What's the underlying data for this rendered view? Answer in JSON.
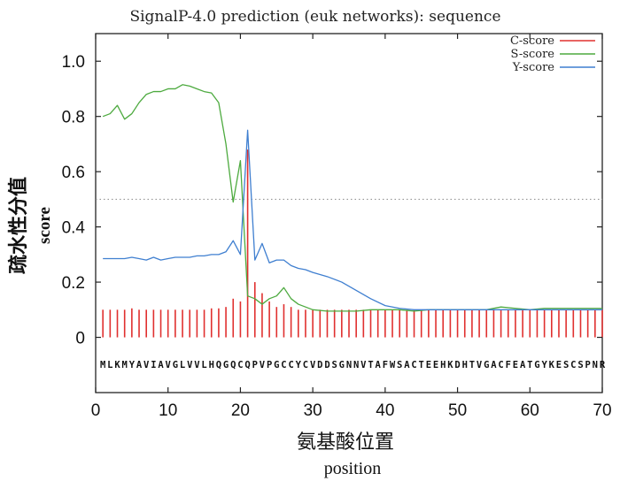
{
  "chart_data": {
    "type": "line",
    "title": "SignalP-4.0 prediction (euk networks): sequence",
    "ylabel_cn": "疏水性分值",
    "ylabel_en": "score",
    "xlabel_cn": "氨基酸位置",
    "xlabel_en": "position",
    "xlim": [
      0,
      70
    ],
    "ylim": [
      -0.2,
      1.1
    ],
    "x_ticks": [
      "0",
      "10",
      "20",
      "30",
      "40",
      "50",
      "60",
      "70"
    ],
    "y_ticks": [
      "0",
      "0.2",
      "0.4",
      "0.6",
      "0.8",
      "1.0"
    ],
    "threshold": 0.5,
    "legend_position": "top-right",
    "sequence": "MLKMYAVIAVGLVVLHQGQCQPVPGCCYCVDDSGNNVTAFWSACTEEHKDHTVGACFEATGYKESCSPNR",
    "series": [
      {
        "name": "C-score",
        "color": "#e0302f",
        "style": "impulse",
        "x": [
          1,
          2,
          3,
          4,
          5,
          6,
          7,
          8,
          9,
          10,
          11,
          12,
          13,
          14,
          15,
          16,
          17,
          18,
          19,
          20,
          21,
          22,
          23,
          24,
          25,
          26,
          27,
          28,
          29,
          30,
          31,
          32,
          33,
          34,
          35,
          36,
          37,
          38,
          39,
          40,
          41,
          42,
          43,
          44,
          45,
          46,
          47,
          48,
          49,
          50,
          51,
          52,
          53,
          54,
          55,
          56,
          57,
          58,
          59,
          60,
          61,
          62,
          63,
          64,
          65,
          66,
          67,
          68,
          69,
          70
        ],
        "values": [
          0.1,
          0.1,
          0.1,
          0.1,
          0.105,
          0.1,
          0.1,
          0.1,
          0.1,
          0.1,
          0.1,
          0.1,
          0.1,
          0.1,
          0.1,
          0.105,
          0.105,
          0.11,
          0.14,
          0.13,
          0.68,
          0.2,
          0.16,
          0.13,
          0.11,
          0.12,
          0.11,
          0.1,
          0.1,
          0.1,
          0.1,
          0.1,
          0.1,
          0.1,
          0.1,
          0.1,
          0.1,
          0.1,
          0.1,
          0.1,
          0.1,
          0.1,
          0.1,
          0.1,
          0.1,
          0.1,
          0.1,
          0.1,
          0.1,
          0.1,
          0.1,
          0.1,
          0.1,
          0.1,
          0.1,
          0.1,
          0.1,
          0.1,
          0.1,
          0.1,
          0.1,
          0.1,
          0.1,
          0.1,
          0.1,
          0.1,
          0.1,
          0.1,
          0.1,
          0.1
        ]
      },
      {
        "name": "S-score",
        "color": "#4daa3f",
        "style": "line",
        "x": [
          1,
          2,
          3,
          4,
          5,
          6,
          7,
          8,
          9,
          10,
          11,
          12,
          13,
          14,
          15,
          16,
          17,
          18,
          19,
          20,
          21,
          22,
          23,
          24,
          25,
          26,
          27,
          28,
          29,
          30,
          32,
          34,
          36,
          38,
          40,
          42,
          44,
          46,
          48,
          50,
          52,
          54,
          56,
          58,
          60,
          62,
          64,
          66,
          68,
          70
        ],
        "values": [
          0.8,
          0.81,
          0.84,
          0.79,
          0.81,
          0.85,
          0.88,
          0.89,
          0.89,
          0.9,
          0.9,
          0.915,
          0.91,
          0.9,
          0.89,
          0.885,
          0.85,
          0.7,
          0.49,
          0.64,
          0.15,
          0.14,
          0.12,
          0.14,
          0.15,
          0.18,
          0.14,
          0.12,
          0.11,
          0.1,
          0.095,
          0.095,
          0.095,
          0.1,
          0.1,
          0.1,
          0.095,
          0.1,
          0.1,
          0.1,
          0.1,
          0.1,
          0.11,
          0.105,
          0.1,
          0.105,
          0.105,
          0.105,
          0.105,
          0.105
        ]
      },
      {
        "name": "Y-score",
        "color": "#3f7fd0",
        "style": "line",
        "x": [
          1,
          2,
          3,
          4,
          5,
          6,
          7,
          8,
          9,
          10,
          11,
          12,
          13,
          14,
          15,
          16,
          17,
          18,
          19,
          20,
          21,
          22,
          23,
          24,
          25,
          26,
          27,
          28,
          29,
          30,
          32,
          34,
          36,
          38,
          40,
          42,
          44,
          46,
          48,
          50,
          52,
          54,
          56,
          58,
          60,
          62,
          64,
          66,
          68,
          70
        ],
        "values": [
          0.285,
          0.285,
          0.285,
          0.285,
          0.29,
          0.285,
          0.28,
          0.29,
          0.28,
          0.285,
          0.29,
          0.29,
          0.29,
          0.295,
          0.295,
          0.3,
          0.3,
          0.31,
          0.35,
          0.3,
          0.75,
          0.28,
          0.34,
          0.27,
          0.28,
          0.28,
          0.26,
          0.25,
          0.245,
          0.235,
          0.22,
          0.2,
          0.17,
          0.14,
          0.115,
          0.105,
          0.1,
          0.1,
          0.1,
          0.1,
          0.1,
          0.1,
          0.1,
          0.1,
          0.1,
          0.1,
          0.1,
          0.1,
          0.1,
          0.1
        ]
      }
    ]
  }
}
